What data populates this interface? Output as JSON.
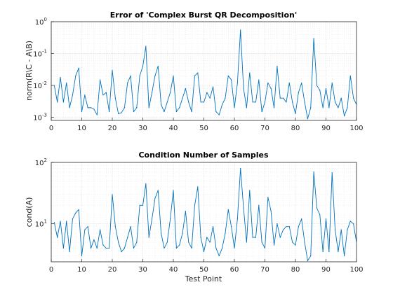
{
  "chart_data": [
    {
      "type": "line",
      "title": "Error of 'Complex Burst QR Decomposition'",
      "xlabel": "",
      "ylabel": "norm(R\\C - A\\B)",
      "xlim": [
        0,
        100
      ],
      "ylim": [
        0.0008,
        1
      ],
      "yscale": "log",
      "grid": true,
      "color": "#0072BD",
      "x_ticks": [
        "0",
        "10",
        "20",
        "30",
        "40",
        "50",
        "60",
        "70",
        "80",
        "90",
        "100"
      ],
      "y_ticks": [
        {
          "value": 0.001,
          "base": "10",
          "exp": "-3"
        },
        {
          "value": 0.01,
          "base": "10",
          "exp": "-2"
        },
        {
          "value": 0.1,
          "base": "10",
          "exp": "-1"
        },
        {
          "value": 1,
          "base": "10",
          "exp": "0"
        }
      ],
      "x": [
        1,
        2,
        3,
        4,
        5,
        6,
        7,
        8,
        9,
        10,
        11,
        12,
        13,
        14,
        15,
        16,
        17,
        18,
        19,
        20,
        21,
        22,
        23,
        24,
        25,
        26,
        27,
        28,
        29,
        30,
        31,
        32,
        33,
        34,
        35,
        36,
        37,
        38,
        39,
        40,
        41,
        42,
        43,
        44,
        45,
        46,
        47,
        48,
        49,
        50,
        51,
        52,
        53,
        54,
        55,
        56,
        57,
        58,
        59,
        60,
        61,
        62,
        63,
        64,
        65,
        66,
        67,
        68,
        69,
        70,
        71,
        72,
        73,
        74,
        75,
        76,
        77,
        78,
        79,
        80,
        81,
        82,
        83,
        84,
        85,
        86,
        87,
        88,
        89,
        90,
        91,
        92,
        93,
        94,
        95,
        96,
        97,
        98,
        99,
        100
      ],
      "values": [
        0.01,
        0.003,
        0.018,
        0.003,
        0.012,
        0.002,
        0.005,
        0.02,
        0.035,
        0.0015,
        0.005,
        0.002,
        0.002,
        0.0018,
        0.0012,
        0.015,
        0.005,
        0.006,
        0.0015,
        0.03,
        0.004,
        0.0013,
        0.0014,
        0.002,
        0.012,
        0.02,
        0.0015,
        0.002,
        0.02,
        0.04,
        0.17,
        0.002,
        0.006,
        0.02,
        0.04,
        0.0025,
        0.0015,
        0.003,
        0.006,
        0.02,
        0.0015,
        0.002,
        0.004,
        0.008,
        0.003,
        0.0015,
        0.02,
        0.025,
        0.003,
        0.003,
        0.006,
        0.004,
        0.009,
        0.0015,
        0.0012,
        0.0025,
        0.004,
        0.02,
        0.015,
        0.002,
        0.012,
        0.55,
        0.008,
        0.002,
        0.025,
        0.003,
        0.003,
        0.015,
        0.0015,
        0.003,
        0.012,
        0.008,
        0.002,
        0.04,
        0.004,
        0.004,
        0.003,
        0.012,
        0.003,
        0.0013,
        0.006,
        0.012,
        0.003,
        0.0009,
        0.002,
        0.3,
        0.01,
        0.007,
        0.002,
        0.008,
        0.002,
        0.012,
        0.003,
        0.002,
        0.004,
        0.0011,
        0.002,
        0.02,
        0.004,
        0.0025
      ],
      "plot_area": "upper"
    },
    {
      "type": "line",
      "title": "Condition Number of Samples",
      "xlabel": "Test Point",
      "ylabel": "cond(A)",
      "xlim": [
        0,
        100
      ],
      "ylim": [
        2.4,
        100
      ],
      "yscale": "log",
      "grid": true,
      "color": "#0072BD",
      "x_ticks": [
        "0",
        "10",
        "20",
        "30",
        "40",
        "50",
        "60",
        "70",
        "80",
        "90",
        "100"
      ],
      "y_ticks": [
        {
          "value": 10,
          "base": "10",
          "exp": "1"
        },
        {
          "value": 100,
          "base": "10",
          "exp": "2"
        }
      ],
      "x": [
        1,
        2,
        3,
        4,
        5,
        6,
        7,
        8,
        9,
        10,
        11,
        12,
        13,
        14,
        15,
        16,
        17,
        18,
        19,
        20,
        21,
        22,
        23,
        24,
        25,
        26,
        27,
        28,
        29,
        30,
        31,
        32,
        33,
        34,
        35,
        36,
        37,
        38,
        39,
        40,
        41,
        42,
        43,
        44,
        45,
        46,
        47,
        48,
        49,
        50,
        51,
        52,
        53,
        54,
        55,
        56,
        57,
        58,
        59,
        60,
        61,
        62,
        63,
        64,
        65,
        66,
        67,
        68,
        69,
        70,
        71,
        72,
        73,
        74,
        75,
        76,
        77,
        78,
        79,
        80,
        81,
        82,
        83,
        84,
        85,
        86,
        87,
        88,
        89,
        90,
        91,
        92,
        93,
        94,
        95,
        96,
        97,
        98,
        99,
        100
      ],
      "values": [
        10.5,
        6,
        11,
        4,
        11,
        3.5,
        12,
        15,
        17,
        3,
        8,
        9,
        4,
        5.5,
        4,
        8,
        4.5,
        4,
        4,
        30,
        9,
        5,
        3.5,
        4,
        6,
        9,
        4,
        5,
        20,
        20,
        45,
        6,
        12,
        26,
        35,
        7,
        4,
        5,
        12,
        35,
        4,
        4.5,
        7,
        16,
        5,
        4,
        20,
        40,
        6,
        3.5,
        6,
        5,
        9,
        4,
        3,
        4,
        7,
        17,
        9,
        4,
        12,
        80,
        18,
        5,
        35,
        6,
        6,
        20,
        5,
        4,
        27,
        16,
        4.5,
        10,
        6,
        8,
        9,
        9,
        5,
        4.5,
        9,
        12,
        5,
        2.5,
        3,
        70,
        18,
        14,
        3.5,
        12,
        3.5,
        68,
        8,
        3.5,
        8,
        3,
        8,
        11,
        10,
        5
      ]
    }
  ]
}
